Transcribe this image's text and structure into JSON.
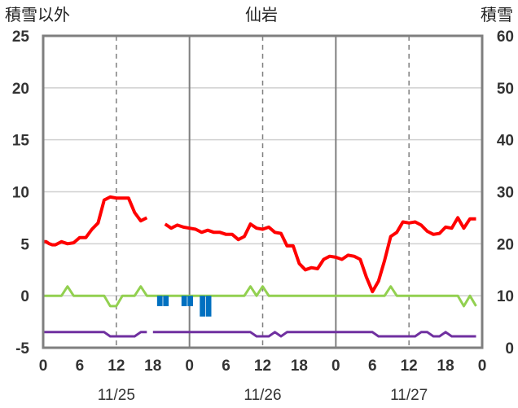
{
  "chart_data": {
    "type": "line",
    "title": "仙岩",
    "ylabel_left": "積雪以外",
    "ylabel_right": "積雪",
    "y_left_range": [
      -5,
      25
    ],
    "y_left_ticks": [
      "25",
      "20",
      "15",
      "10",
      "5",
      "0",
      "-5"
    ],
    "y_right_range": [
      0,
      60
    ],
    "y_right_ticks": [
      "60",
      "50",
      "40",
      "30",
      "20",
      "10",
      "0"
    ],
    "x_range_hours": [
      0,
      72
    ],
    "x_tick_labels": [
      "0",
      "6",
      "12",
      "18",
      "0",
      "6",
      "12",
      "18",
      "0",
      "6",
      "12",
      "18",
      "0"
    ],
    "date_labels": [
      "11/25",
      "11/26",
      "11/27"
    ],
    "grid": true,
    "series": [
      {
        "color": "#ff0000",
        "axis": "left",
        "type": "line",
        "x": [
          0,
          0.5,
          1,
          1.5,
          2,
          3,
          4,
          5,
          6,
          7,
          8,
          9,
          10,
          11,
          12,
          13,
          14,
          15,
          16,
          17,
          18,
          19,
          null,
          20,
          21,
          22,
          23,
          24,
          25,
          26,
          27,
          28,
          29,
          30,
          31,
          32,
          33,
          34,
          35,
          36,
          37,
          38,
          39,
          40,
          41,
          42,
          43,
          44,
          45,
          46,
          47,
          48,
          49,
          50,
          51,
          52,
          53,
          54,
          55,
          56,
          57,
          58,
          59,
          60,
          61,
          62,
          63,
          64,
          65,
          66,
          67,
          68,
          69,
          70,
          71
        ],
        "y": [
          5.2,
          5.2,
          5.0,
          4.9,
          4.9,
          5.2,
          5.0,
          5.1,
          5.6,
          5.6,
          6.4,
          7.0,
          9.2,
          9.5,
          9.4,
          9.4,
          9.4,
          8.0,
          7.2,
          7.5,
          null,
          null,
          null,
          6.9,
          6.5,
          6.8,
          6.6,
          6.5,
          6.4,
          6.1,
          6.3,
          6.1,
          6.1,
          5.9,
          5.9,
          5.4,
          5.7,
          6.9,
          6.5,
          6.4,
          6.6,
          6.1,
          6.0,
          4.8,
          4.8,
          3.1,
          2.5,
          2.7,
          2.6,
          3.5,
          3.8,
          3.7,
          3.5,
          3.9,
          3.8,
          3.5,
          1.8,
          0.4,
          1.4,
          3.4,
          5.7,
          6.1,
          7.1,
          7.0,
          7.1,
          6.8,
          6.2,
          5.9,
          6.0,
          6.6,
          6.5,
          7.5,
          6.5,
          7.4,
          7.4
        ]
      },
      {
        "color": "#92d050",
        "axis": "left",
        "type": "line",
        "x": [
          0,
          3,
          4,
          5,
          10,
          11,
          12,
          13,
          15,
          16,
          17,
          18,
          19,
          20,
          24,
          25,
          26,
          27,
          28,
          29,
          30,
          31,
          32,
          33,
          34,
          35,
          36,
          37,
          40,
          44,
          45,
          46,
          47,
          48,
          49,
          50,
          51,
          52,
          55,
          56,
          57,
          58,
          59,
          60,
          62,
          63,
          64,
          65,
          66,
          68,
          69,
          70,
          71
        ],
        "y": [
          0,
          0,
          0.9,
          0,
          0,
          -1.0,
          -1.0,
          0,
          0,
          0.9,
          0,
          0,
          0,
          0,
          0,
          0,
          0,
          0,
          0,
          0,
          0,
          0,
          0,
          0,
          0.9,
          0,
          0.9,
          0,
          0,
          0,
          0,
          0,
          0,
          0,
          0,
          0,
          0,
          0,
          0,
          0,
          0.9,
          0,
          0,
          0,
          0,
          0,
          0,
          0,
          0,
          0,
          -1.0,
          0,
          -1.0
        ]
      },
      {
        "color": "#7030a0",
        "axis": "left",
        "type": "line",
        "x": [
          0,
          9,
          10,
          11,
          12,
          13,
          14,
          15,
          16,
          17,
          null,
          18,
          19,
          20,
          21,
          22,
          23,
          24,
          25,
          26,
          27,
          28,
          29,
          30,
          31,
          32,
          33,
          34,
          35,
          36,
          37,
          38,
          39,
          40,
          41,
          42,
          43,
          44,
          45,
          46,
          47,
          48,
          49,
          50,
          51,
          52,
          53,
          54,
          55,
          56,
          57,
          58,
          59,
          60,
          61,
          62,
          63,
          64,
          65,
          66,
          67,
          68,
          69,
          70,
          71
        ],
        "y": [
          -3.5,
          -3.5,
          -3.5,
          -3.9,
          -3.9,
          -3.9,
          -3.9,
          -3.9,
          -3.5,
          -3.5,
          null,
          -3.5,
          -3.5,
          -3.5,
          -3.5,
          -3.5,
          -3.5,
          -3.5,
          -3.5,
          -3.5,
          -3.5,
          -3.5,
          -3.5,
          -3.5,
          -3.5,
          -3.5,
          -3.5,
          -3.5,
          -3.9,
          -3.9,
          -3.9,
          -3.5,
          -3.9,
          -3.5,
          -3.5,
          -3.5,
          -3.5,
          -3.5,
          -3.5,
          -3.5,
          -3.5,
          -3.5,
          -3.5,
          -3.5,
          -3.5,
          -3.5,
          -3.5,
          -3.5,
          -3.9,
          -3.9,
          -3.9,
          -3.9,
          -3.9,
          -3.9,
          -3.9,
          -3.5,
          -3.5,
          -3.9,
          -3.9,
          -3.5,
          -3.9,
          -3.9,
          -3.9,
          -3.9,
          -3.9
        ]
      },
      {
        "color": "#0070c0",
        "axis": "left",
        "type": "bar",
        "x": [
          19,
          20,
          21,
          22,
          23,
          24,
          25,
          26,
          27,
          28
        ],
        "y": [
          -1.0,
          -1.0,
          0,
          0,
          -1.0,
          -1.0,
          0,
          -2.0,
          -2.0,
          0
        ]
      }
    ]
  }
}
